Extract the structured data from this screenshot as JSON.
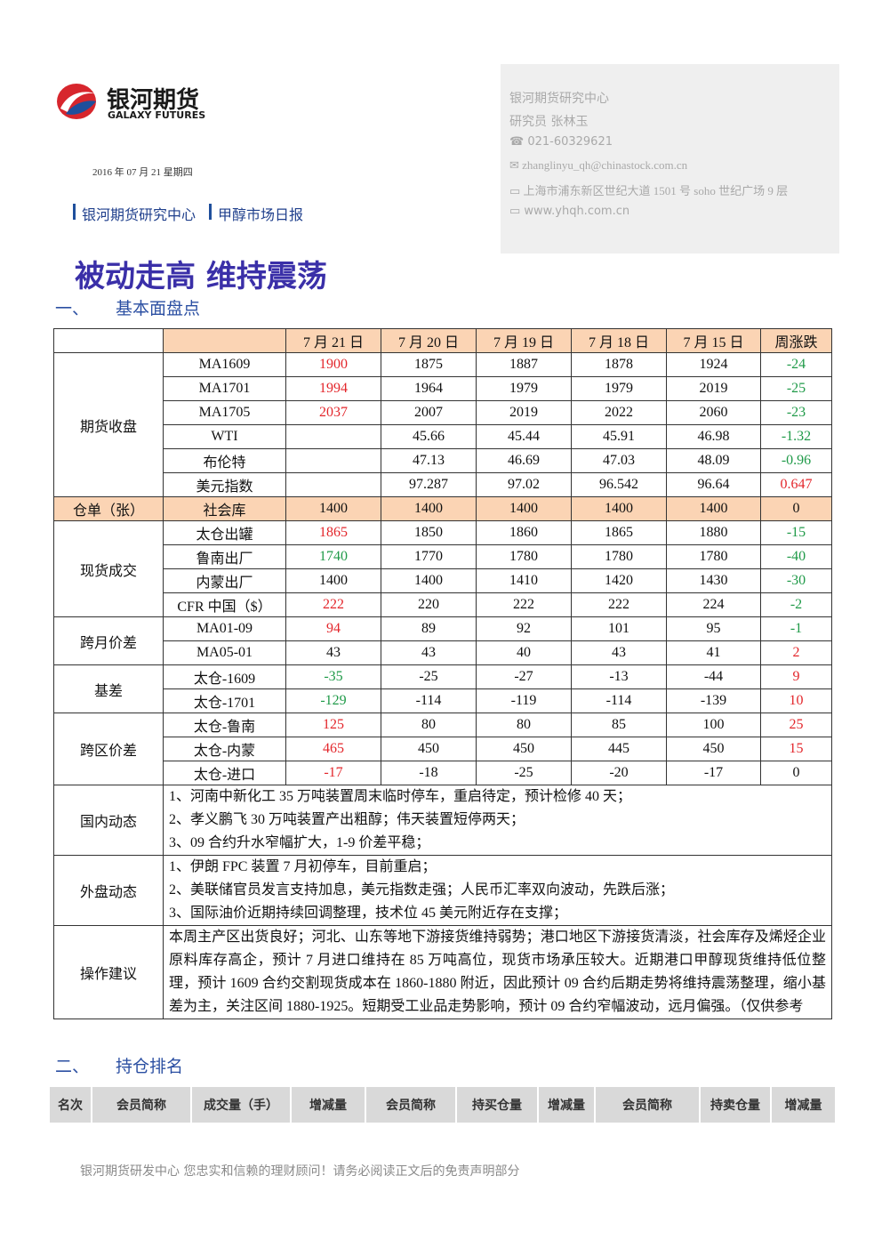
{
  "header": {
    "logo_cn": "银河期货",
    "logo_en": "GALAXY FUTURES",
    "date": "2016 年 07 月 21 星期四",
    "dept": "银河期货研究中心",
    "report": "甲醇市场日报"
  },
  "contact": {
    "org": "银河期货研究中心",
    "analyst": "研究员  张林玉",
    "phone": "021-60329621",
    "email": "zhanglinyu_qh@chinastock.com.cn",
    "address": "上海市浦东新区世纪大道 1501 号 soho 世纪广场 9 层",
    "website": "www.yhqh.com.cn"
  },
  "title": "被动走高  维持震荡",
  "section1": {
    "num": "一、",
    "title": "基本面盘点"
  },
  "table1": {
    "palette": {
      "up": "#e3262b",
      "down": "#1f9a48",
      "highlight": "#fbd4b4"
    },
    "columns": [
      "7 月 21 日",
      "7 月 20 日",
      "7 月 19 日",
      "7 月 18 日",
      "7 月 15 日",
      "周涨跌"
    ],
    "groups": [
      {
        "label": "期货收盘",
        "rows": [
          {
            "name": "MA1609",
            "values": [
              "1900",
              "1875",
              "1887",
              "1878",
              "1924",
              "-24"
            ],
            "colors": [
              "up",
              null,
              null,
              null,
              null,
              "down"
            ]
          },
          {
            "name": "MA1701",
            "values": [
              "1994",
              "1964",
              "1979",
              "1979",
              "2019",
              "-25"
            ],
            "colors": [
              "up",
              null,
              null,
              null,
              null,
              "down"
            ]
          },
          {
            "name": "MA1705",
            "values": [
              "2037",
              "2007",
              "2019",
              "2022",
              "2060",
              "-23"
            ],
            "colors": [
              "up",
              null,
              null,
              null,
              null,
              "down"
            ]
          },
          {
            "name": "WTI",
            "values": [
              null,
              "45.66",
              "45.44",
              "45.91",
              "46.98",
              "-1.32"
            ],
            "colors": [
              null,
              null,
              null,
              null,
              null,
              "down"
            ]
          },
          {
            "name": "布伦特",
            "values": [
              null,
              "47.13",
              "46.69",
              "47.03",
              "48.09",
              "-0.96"
            ],
            "colors": [
              null,
              null,
              null,
              null,
              null,
              "down"
            ]
          },
          {
            "name": "美元指数",
            "values": [
              null,
              "97.287",
              "97.02",
              "96.542",
              "96.64",
              "0.647"
            ],
            "colors": [
              null,
              null,
              null,
              null,
              null,
              "up"
            ]
          }
        ]
      },
      {
        "label": "仓单（张）",
        "highlight": true,
        "rows": [
          {
            "name": "社会库",
            "values": [
              "1400",
              "1400",
              "1400",
              "1400",
              "1400",
              "0"
            ],
            "colors": [
              null,
              null,
              null,
              null,
              null,
              null
            ]
          }
        ]
      },
      {
        "label": "现货成交",
        "rows": [
          {
            "name": "太仓出罐",
            "values": [
              "1865",
              "1850",
              "1860",
              "1865",
              "1880",
              "-15"
            ],
            "colors": [
              "up",
              null,
              null,
              null,
              null,
              "down"
            ]
          },
          {
            "name": "鲁南出厂",
            "values": [
              "1740",
              "1770",
              "1780",
              "1780",
              "1780",
              "-40"
            ],
            "colors": [
              "down",
              null,
              null,
              null,
              null,
              "down"
            ]
          },
          {
            "name": "内蒙出厂",
            "values": [
              "1400",
              "1400",
              "1410",
              "1420",
              "1430",
              "-30"
            ],
            "colors": [
              null,
              null,
              null,
              null,
              null,
              "down"
            ]
          },
          {
            "name": "CFR 中国（$）",
            "values": [
              "222",
              "220",
              "222",
              "222",
              "224",
              "-2"
            ],
            "colors": [
              "up",
              null,
              null,
              null,
              null,
              "down"
            ]
          }
        ]
      },
      {
        "label": "跨月价差",
        "rows": [
          {
            "name": "MA01-09",
            "values": [
              "94",
              "89",
              "92",
              "101",
              "95",
              "-1"
            ],
            "colors": [
              "up",
              null,
              null,
              null,
              null,
              "down"
            ]
          },
          {
            "name": "MA05-01",
            "values": [
              "43",
              "43",
              "40",
              "43",
              "41",
              "2"
            ],
            "colors": [
              null,
              null,
              null,
              null,
              null,
              "up"
            ]
          }
        ]
      },
      {
        "label": "基差",
        "rows": [
          {
            "name": "太仓-1609",
            "values": [
              "-35",
              "-25",
              "-27",
              "-13",
              "-44",
              "9"
            ],
            "colors": [
              "down",
              null,
              null,
              null,
              null,
              "up"
            ]
          },
          {
            "name": "太仓-1701",
            "values": [
              "-129",
              "-114",
              "-119",
              "-114",
              "-139",
              "10"
            ],
            "colors": [
              "down",
              null,
              null,
              null,
              null,
              "up"
            ]
          }
        ]
      },
      {
        "label": "跨区价差",
        "rows": [
          {
            "name": "太仓-鲁南",
            "values": [
              "125",
              "80",
              "80",
              "85",
              "100",
              "25"
            ],
            "colors": [
              "up",
              null,
              null,
              null,
              null,
              "up"
            ]
          },
          {
            "name": "太仓-内蒙",
            "values": [
              "465",
              "450",
              "450",
              "445",
              "450",
              "15"
            ],
            "colors": [
              "up",
              null,
              null,
              null,
              null,
              "up"
            ]
          },
          {
            "name": "太仓-进口",
            "values": [
              "-17",
              "-18",
              "-25",
              "-20",
              "-17",
              "0"
            ],
            "colors": [
              "up",
              null,
              null,
              null,
              null,
              null
            ]
          }
        ]
      }
    ],
    "notes": [
      {
        "label": "国内动态",
        "lines": [
          "1、河南中新化工 35 万吨装置周末临时停车，重启待定，预计检修 40 天；",
          "2、孝义鹏飞 30 万吨装置产出粗醇；伟天装置短停两天；",
          "3、09 合约升水窄幅扩大，1-9 价差平稳；"
        ]
      },
      {
        "label": "外盘动态",
        "lines": [
          "1、伊朗 FPC 装置 7 月初停车，目前重启；",
          "2、美联储官员发言支持加息，美元指数走强；人民币汇率双向波动，先跌后涨；",
          "3、国际油价近期持续回调整理，技术位 45 美元附近存在支撑；"
        ]
      },
      {
        "label": "操作建议",
        "lines": [
          "本周主产区出货良好；河北、山东等地下游接货维持弱势；港口地区下游接货清淡，社会库存及烯烃企业原料库存高企，预计 7 月进口维持在 85 万吨高位，现货市场承压较大。近期港口甲醇现货维持低位整理，预计 1609 合约交割现货成本在 1860-1880 附近，因此预计 09 合约后期走势将维持震荡整理，缩小基差为主，关注区间 1880-1925。短期受工业品走势影响，预计 09 合约窄幅波动，远月偏强。（仅供参考"
        ]
      }
    ]
  },
  "section2": {
    "num": "二、",
    "title": "持仓排名"
  },
  "table2": {
    "columns": [
      "名次",
      "会员简称",
      "成交量（手）",
      "增减量",
      "会员简称",
      "持买仓量",
      "增减量",
      "会员简称",
      "持卖仓量",
      "增减量"
    ]
  },
  "footer": "银河期货研发中心  您忠实和信赖的理财顾问！请务必阅读正文后的免责声明部分"
}
